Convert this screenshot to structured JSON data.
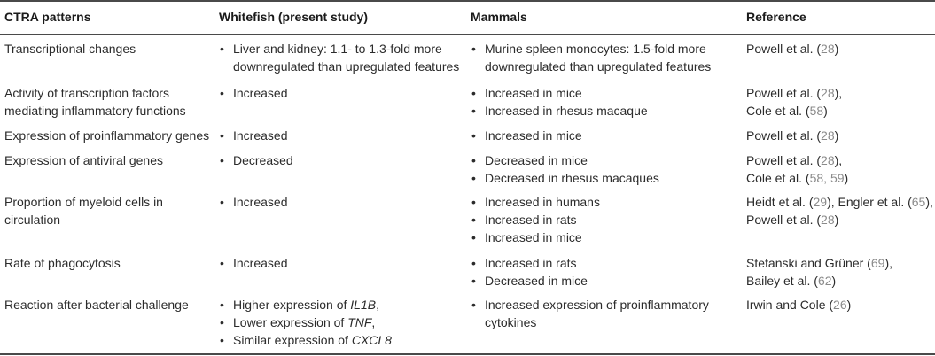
{
  "headers": {
    "col1": "CTRA patterns",
    "col2": "Whitefish (present study)",
    "col3": "Mammals",
    "col4": "Reference"
  },
  "rows": [
    {
      "pattern": [
        "Transcriptional changes"
      ],
      "whitefish": [
        [
          "Liver and kidney: 1.1- to 1.3-fold more",
          "downregulated than upregulated features"
        ]
      ],
      "mammals": [
        [
          "Murine spleen monocytes: 1.5-fold more",
          "downregulated than upregulated features"
        ]
      ],
      "refs": [
        [
          "Powell et al. (",
          "28",
          ")"
        ]
      ]
    },
    {
      "pattern": [
        "Activity of transcription factors",
        "mediating inflammatory functions"
      ],
      "whitefish": [
        [
          "Increased"
        ]
      ],
      "mammals": [
        [
          "Increased in mice"
        ],
        [
          "Increased in rhesus macaque"
        ]
      ],
      "refs": [
        [
          "Powell et al. (",
          "28",
          "),"
        ],
        [
          "Cole et al. (",
          "58",
          ")"
        ]
      ]
    },
    {
      "pattern": [
        "Expression of proinflammatory genes"
      ],
      "whitefish": [
        [
          "Increased"
        ]
      ],
      "mammals": [
        [
          "Increased in mice"
        ]
      ],
      "refs": [
        [
          "Powell et al. (",
          "28",
          ")"
        ]
      ]
    },
    {
      "pattern": [
        "Expression of antiviral genes"
      ],
      "whitefish": [
        [
          "Decreased"
        ]
      ],
      "mammals": [
        [
          "Decreased in mice"
        ],
        [
          "Decreased in rhesus macaques"
        ]
      ],
      "refs": [
        [
          "Powell et al. (",
          "28",
          "),"
        ],
        [
          "Cole et al. (",
          "58, 59",
          ")"
        ]
      ]
    },
    {
      "pattern": [
        "Proportion of myeloid cells in",
        "circulation"
      ],
      "whitefish": [
        [
          "Increased"
        ]
      ],
      "mammals": [
        [
          "Increased in humans"
        ],
        [
          "Increased in rats"
        ],
        [
          "Increased in mice"
        ]
      ],
      "refs": [
        [
          "Heidt et al. (",
          "29",
          "), Engler et al. (",
          "65",
          "),"
        ],
        [
          "Powell et al. (",
          "28",
          ")"
        ]
      ]
    },
    {
      "pattern": [
        "Rate of phagocytosis"
      ],
      "whitefish": [
        [
          "Increased"
        ]
      ],
      "mammals": [
        [
          "Increased in rats"
        ],
        [
          "Decreased in mice"
        ]
      ],
      "refs": [
        [
          "Stefanski and Grüner (",
          "69",
          "),"
        ],
        [
          "Bailey et al. (",
          "62",
          ")"
        ]
      ]
    },
    {
      "pattern": [
        "Reaction after bacterial challenge"
      ],
      "whitefish_rich": [
        {
          "pre": "Higher expression of ",
          "gene": "IL1B",
          "post": ","
        },
        {
          "pre": "Lower expression of ",
          "gene": "TNF",
          "post": ","
        },
        {
          "pre": "Similar expression of ",
          "gene": "CXCL8",
          "post": ""
        }
      ],
      "mammals": [
        [
          "Increased expression of proinflammatory",
          "cytokines"
        ]
      ],
      "refs": [
        [
          "Irwin and Cole (",
          "26",
          ")"
        ]
      ]
    }
  ]
}
